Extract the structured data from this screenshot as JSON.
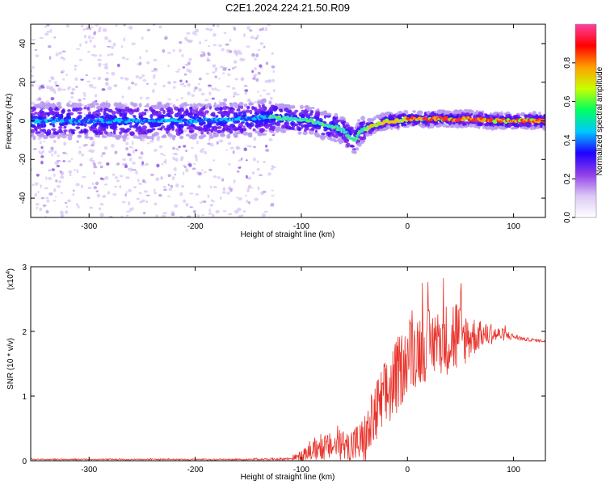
{
  "title": "C2E1.2024.224.21.50.R09",
  "chart_data": [
    {
      "type": "heatmap",
      "xlabel": "Height of straight line (km)",
      "ylabel": "Frequency (Hz)",
      "xlim": [
        -355,
        130
      ],
      "ylim": [
        -50,
        50
      ],
      "xticks": [
        -300,
        -200,
        -100,
        0,
        100
      ],
      "xtick_labels": [
        "-300",
        "-200",
        "-100",
        "0",
        "100"
      ],
      "yticks": [
        -40,
        -20,
        0,
        20,
        40
      ],
      "ytick_labels": [
        "-40",
        "-20",
        "0",
        "20",
        "40"
      ],
      "colorbar": {
        "label": "Normalized spectral amplitude",
        "range": [
          0,
          1
        ],
        "ticks": [
          0.0,
          0.2,
          0.4,
          0.6,
          0.8
        ],
        "tick_labels": [
          "0.0",
          "0.2",
          "0.4",
          "0.6",
          "0.8"
        ],
        "colors": [
          "#ffffff",
          "#dcc8f5",
          "#9040e8",
          "#2000ff",
          "#00c8ff",
          "#00ff60",
          "#c8ff00",
          "#ffa000",
          "#ff0000",
          "#ff40a0"
        ]
      },
      "ridge": {
        "x": [
          -355,
          -300,
          -250,
          -200,
          -150,
          -130,
          -110,
          -90,
          -80,
          -70,
          -60,
          -55,
          -50,
          -45,
          -40,
          -30,
          -20,
          -10,
          0,
          20,
          40,
          60,
          80,
          100,
          130
        ],
        "y": [
          0,
          0,
          0,
          0,
          1,
          2,
          1,
          0,
          -2,
          -3,
          -5,
          -8,
          -10,
          -6,
          -4,
          -2,
          0,
          0,
          1,
          1,
          1,
          1,
          0,
          0,
          0
        ]
      }
    },
    {
      "type": "line",
      "xlabel": "Height of straight line (km)",
      "ylabel": "SNR (10 * v/v)",
      "y_multiplier": "(x10",
      "y_multiplier_exp": "4",
      "y_multiplier_close": ")",
      "xlim": [
        -355,
        130
      ],
      "ylim": [
        0,
        3
      ],
      "xticks": [
        -300,
        -200,
        -100,
        0,
        100
      ],
      "xtick_labels": [
        "-300",
        "-200",
        "-100",
        "0",
        "100"
      ],
      "yticks": [
        0,
        1,
        2,
        3
      ],
      "ytick_labels": [
        "0",
        "1",
        "2",
        "3"
      ],
      "color": "#e8322a",
      "envelope": {
        "x": [
          -355,
          -150,
          -110,
          -100,
          -80,
          -60,
          -50,
          -40,
          -35,
          -30,
          -20,
          -10,
          0,
          10,
          20,
          30,
          40,
          45,
          50,
          60,
          70,
          80,
          90,
          100,
          110,
          130
        ],
        "mean": [
          0.02,
          0.02,
          0.03,
          0.08,
          0.2,
          0.25,
          0.25,
          0.3,
          0.5,
          0.7,
          1.0,
          1.3,
          1.6,
          1.75,
          1.8,
          1.85,
          1.9,
          1.95,
          1.9,
          1.92,
          1.95,
          1.95,
          1.95,
          1.92,
          1.88,
          1.85
        ],
        "amp": [
          0.01,
          0.01,
          0.02,
          0.08,
          0.2,
          0.25,
          0.3,
          0.4,
          0.5,
          0.55,
          0.6,
          0.6,
          0.55,
          0.6,
          0.55,
          0.5,
          0.6,
          0.7,
          0.5,
          0.35,
          0.2,
          0.15,
          0.1,
          0.05,
          0.03,
          0.02
        ]
      }
    }
  ]
}
